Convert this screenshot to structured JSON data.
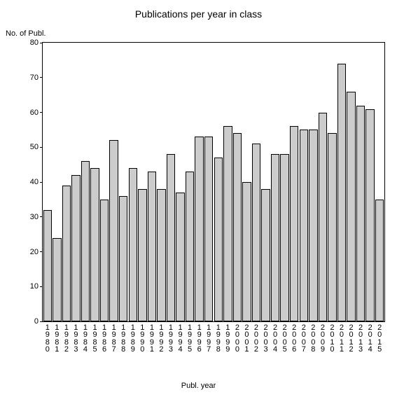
{
  "chart": {
    "type": "bar",
    "title": "Publications per year in class",
    "title_fontsize": 14,
    "title_color": "#000000",
    "ylabel": "No. of Publ.",
    "xlabel": "Publ. year",
    "label_fontsize": 11,
    "label_color": "#000000",
    "background_color": "#ffffff",
    "plot_border_color": "#000000",
    "bar_fill": "#cccccc",
    "bar_border": "#000000",
    "bar_width": 0.92,
    "tick_fontsize": 11,
    "tick_color": "#000000",
    "ylim": [
      0,
      80
    ],
    "ytick_step": 10,
    "categories": [
      "1980",
      "1981",
      "1982",
      "1983",
      "1984",
      "1985",
      "1986",
      "1987",
      "1988",
      "1989",
      "1990",
      "1991",
      "1992",
      "1993",
      "1994",
      "1995",
      "1996",
      "1997",
      "1998",
      "1999",
      "2000",
      "2001",
      "2002",
      "2003",
      "2004",
      "2005",
      "2006",
      "2007",
      "2008",
      "2009",
      "2010",
      "2011",
      "2012",
      "2013",
      "2014",
      "2015"
    ],
    "values": [
      32,
      24,
      39,
      42,
      46,
      44,
      35,
      52,
      36,
      44,
      38,
      43,
      38,
      48,
      37,
      43,
      53,
      53,
      47,
      56,
      54,
      40,
      51,
      38,
      48,
      48,
      56,
      55,
      55,
      60,
      54,
      74,
      66,
      62,
      61,
      35
    ]
  }
}
